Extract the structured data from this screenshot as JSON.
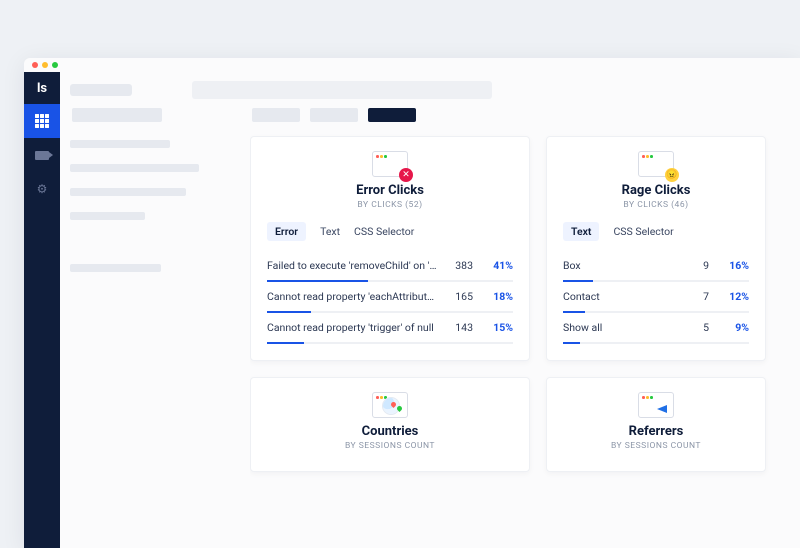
{
  "colors": {
    "page_bg": "#eef1f5",
    "window_bg": "#fbfbfc",
    "sidebar_bg": "#0f1d3a",
    "accent": "#1953e6",
    "text_primary": "#0f1d3a",
    "text_muted": "#8a94a6",
    "placeholder": "#e6e9ef",
    "card_border": "#eef0f4",
    "traffic_red": "#ff5f56",
    "traffic_yellow": "#ffbd2e",
    "traffic_green": "#27c93f",
    "error_badge": "#e6174a",
    "rage_badge": "#ffd23f"
  },
  "logo_text": "ls",
  "cards": {
    "error_clicks": {
      "title": "Error Clicks",
      "subtitle": "BY CLICKS (52)",
      "chips": [
        {
          "label": "Error",
          "active": true
        },
        {
          "label": "Text",
          "active": false
        },
        {
          "label": "CSS Selector",
          "active": false
        }
      ],
      "items": [
        {
          "label": "Failed to execute 'removeChild' on 'Node'...",
          "count": "383",
          "pct": "41%",
          "bar_pct": 41
        },
        {
          "label": "Cannot read property 'eachAttribute' of null",
          "count": "165",
          "pct": "18%",
          "bar_pct": 18
        },
        {
          "label": "Cannot read property 'trigger' of null",
          "count": "143",
          "pct": "15%",
          "bar_pct": 15
        }
      ]
    },
    "rage_clicks": {
      "title": "Rage Clicks",
      "subtitle": "BY CLICKS (46)",
      "chips": [
        {
          "label": "Text",
          "active": true
        },
        {
          "label": "CSS Selector",
          "active": false
        }
      ],
      "items": [
        {
          "label": "Box",
          "count": "9",
          "pct": "16%",
          "bar_pct": 16
        },
        {
          "label": "Contact",
          "count": "7",
          "pct": "12%",
          "bar_pct": 12
        },
        {
          "label": "Show all",
          "count": "5",
          "pct": "9%",
          "bar_pct": 9
        }
      ]
    },
    "countries": {
      "title": "Countries",
      "subtitle": "BY SESSIONS COUNT"
    },
    "referrers": {
      "title": "Referrers",
      "subtitle": "BY SESSIONS COUNT"
    }
  }
}
